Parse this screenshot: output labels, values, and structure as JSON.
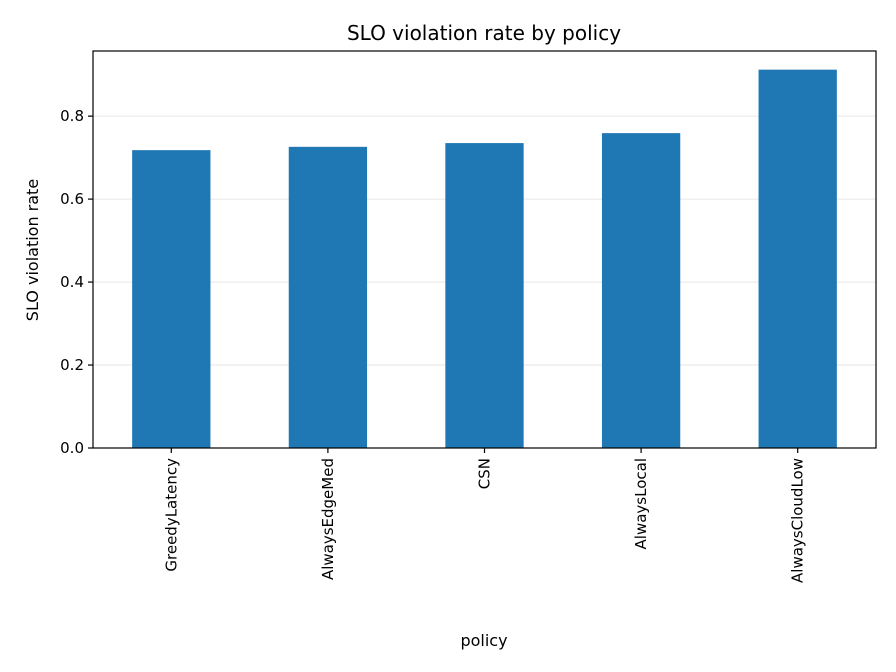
{
  "chart_data": {
    "type": "bar",
    "title": "SLO violation rate by policy",
    "xlabel": "policy",
    "ylabel": "SLO violation rate",
    "categories": [
      "GreedyLatency",
      "AlwaysEdgeMed",
      "CSN",
      "AlwaysLocal",
      "AlwaysCloudLow"
    ],
    "values": [
      0.718,
      0.726,
      0.735,
      0.759,
      0.912
    ],
    "ylim": [
      0,
      0.957
    ],
    "yticks": [
      "0.0",
      "0.2",
      "0.4",
      "0.6",
      "0.8"
    ],
    "ytick_values": [
      0,
      0.2,
      0.4,
      0.6,
      0.8
    ],
    "grid": "horizontal",
    "legend": "none",
    "colors": {
      "bar": "#1f77b4",
      "grid": "#e6e6e6",
      "axis": "#000000"
    }
  }
}
